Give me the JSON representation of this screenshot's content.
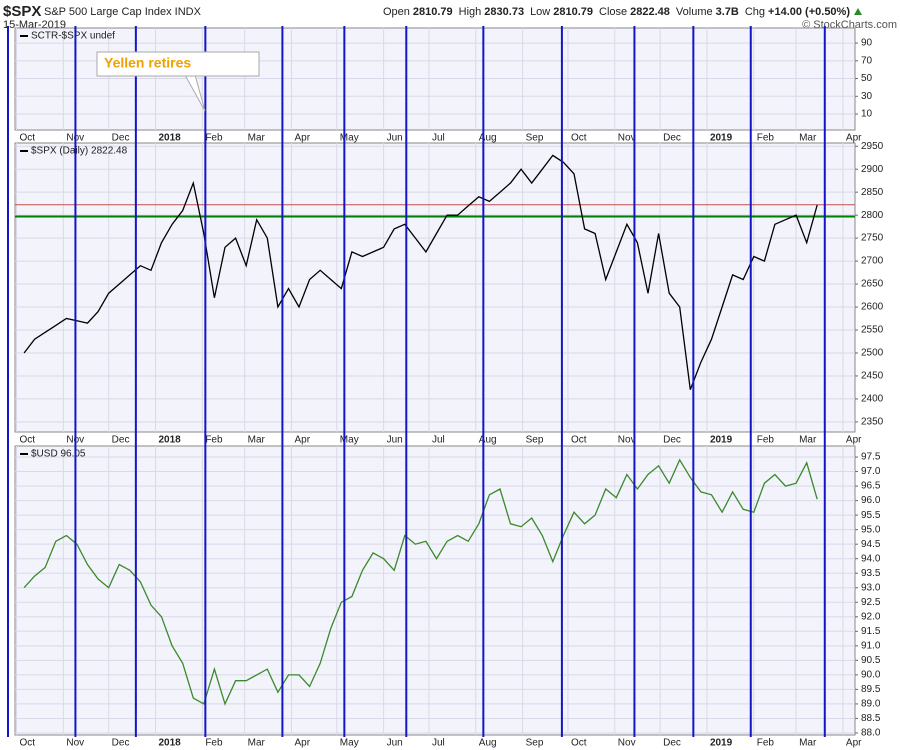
{
  "header": {
    "symbol": "$SPX",
    "name": "S&P 500 Large Cap Index INDX",
    "date": "15-Mar-2019",
    "quote": [
      {
        "label": "Open",
        "value": 2810.79
      },
      {
        "label": "High",
        "value": 2830.73
      },
      {
        "label": "Low",
        "value": 2810.79
      },
      {
        "label": "Close",
        "value": 2822.48
      },
      {
        "label": "Volume",
        "value": 3700000000,
        "value_label": "3.7B"
      },
      {
        "label": "Chg",
        "value_label": "+14.00 (+0.50%)"
      }
    ],
    "copyright": "© StockCharts.com"
  },
  "annotation": {
    "text": "Yellen retires"
  },
  "x_axis": {
    "xlim": [
      "2017-09-30",
      "2019-04-09"
    ],
    "xticks": [
      {
        "value": "2017-10-01",
        "label": "Oct"
      },
      {
        "value": "2017-11-01",
        "label": "Nov"
      },
      {
        "value": "2017-12-01",
        "label": "Dec"
      },
      {
        "value": "2018-01-01",
        "label": "2018"
      },
      {
        "value": "2018-02-01",
        "label": "Feb"
      },
      {
        "value": "2018-03-01",
        "label": "Mar"
      },
      {
        "value": "2018-04-01",
        "label": "Apr"
      },
      {
        "value": "2018-05-01",
        "label": "May"
      },
      {
        "value": "2018-06-01",
        "label": "Jun"
      },
      {
        "value": "2018-07-01",
        "label": "Jul"
      },
      {
        "value": "2018-08-01",
        "label": "Aug"
      },
      {
        "value": "2018-09-01",
        "label": "Sep"
      },
      {
        "value": "2018-10-01",
        "label": "Oct"
      },
      {
        "value": "2018-11-01",
        "label": "Nov"
      },
      {
        "value": "2018-12-01",
        "label": "Dec"
      },
      {
        "value": "2019-01-01",
        "label": "2019"
      },
      {
        "value": "2019-02-01",
        "label": "Feb"
      },
      {
        "value": "2019-03-01",
        "label": "Mar"
      },
      {
        "value": "2019-04-01",
        "label": "Apr"
      }
    ],
    "cycle_lines": [
      "2017-11-09",
      "2017-12-19",
      "2018-02-03",
      "2018-03-26",
      "2018-05-06",
      "2018-06-16",
      "2018-08-06",
      "2018-09-27",
      "2018-11-14",
      "2018-12-23",
      "2019-01-30",
      "2019-03-20"
    ],
    "cycle_color": "#1414c8"
  },
  "chart_data": [
    {
      "type": "line",
      "legend": "SCTR-$SPX undef",
      "x": [],
      "series": [],
      "ylim": [
        -8,
        107
      ],
      "yticks": [
        10,
        30,
        50,
        70,
        90
      ],
      "grid": true
    },
    {
      "type": "line",
      "legend": "$SPX (Daily) 2822.48",
      "x": [
        "2017-10-06",
        "2017-10-13",
        "2017-10-20",
        "2017-10-27",
        "2017-11-03",
        "2017-11-10",
        "2017-11-17",
        "2017-11-24",
        "2017-12-01",
        "2017-12-08",
        "2017-12-15",
        "2017-12-22",
        "2017-12-29",
        "2018-01-05",
        "2018-01-12",
        "2018-01-19",
        "2018-01-26",
        "2018-02-02",
        "2018-02-09",
        "2018-02-16",
        "2018-02-23",
        "2018-03-02",
        "2018-03-09",
        "2018-03-16",
        "2018-03-23",
        "2018-03-30",
        "2018-04-06",
        "2018-04-13",
        "2018-04-20",
        "2018-04-27",
        "2018-05-04",
        "2018-05-11",
        "2018-05-18",
        "2018-05-25",
        "2018-06-01",
        "2018-06-08",
        "2018-06-15",
        "2018-06-22",
        "2018-06-29",
        "2018-07-06",
        "2018-07-13",
        "2018-07-20",
        "2018-07-27",
        "2018-08-03",
        "2018-08-10",
        "2018-08-17",
        "2018-08-24",
        "2018-08-31",
        "2018-09-07",
        "2018-09-14",
        "2018-09-21",
        "2018-09-28",
        "2018-10-05",
        "2018-10-12",
        "2018-10-19",
        "2018-10-26",
        "2018-11-02",
        "2018-11-09",
        "2018-11-16",
        "2018-11-23",
        "2018-11-30",
        "2018-12-07",
        "2018-12-14",
        "2018-12-21",
        "2018-12-28",
        "2019-01-04",
        "2019-01-11",
        "2019-01-18",
        "2019-01-25",
        "2019-02-01",
        "2019-02-08",
        "2019-02-15",
        "2019-02-22",
        "2019-03-01",
        "2019-03-08",
        "2019-03-15"
      ],
      "series": [
        {
          "name": "$SPX",
          "color": "#000000",
          "values": [
            2500,
            2530,
            2545,
            2560,
            2575,
            2570,
            2565,
            2590,
            2630,
            2650,
            2670,
            2690,
            2680,
            2740,
            2780,
            2810,
            2870,
            2760,
            2620,
            2730,
            2750,
            2690,
            2790,
            2750,
            2600,
            2640,
            2600,
            2660,
            2680,
            2660,
            2640,
            2720,
            2710,
            2720,
            2730,
            2770,
            2780,
            2750,
            2720,
            2760,
            2800,
            2800,
            2820,
            2840,
            2830,
            2850,
            2870,
            2900,
            2870,
            2900,
            2930,
            2915,
            2890,
            2770,
            2760,
            2660,
            2720,
            2780,
            2740,
            2630,
            2760,
            2630,
            2600,
            2420,
            2480,
            2530,
            2600,
            2670,
            2660,
            2710,
            2700,
            2780,
            2790,
            2800,
            2740,
            2822
          ]
        }
      ],
      "hlines": [
        {
          "value": 2797,
          "color": "#008000"
        }
      ],
      "close_line_color": "#c0504d",
      "ylim": [
        2328,
        2957
      ],
      "yticks": [
        2350,
        2400,
        2450,
        2500,
        2550,
        2600,
        2650,
        2700,
        2750,
        2800,
        2850,
        2900,
        2950
      ],
      "grid": true
    },
    {
      "type": "line",
      "legend": "$USD 96.05",
      "x": [
        "2017-10-06",
        "2017-10-13",
        "2017-10-20",
        "2017-10-27",
        "2017-11-03",
        "2017-11-10",
        "2017-11-17",
        "2017-11-24",
        "2017-12-01",
        "2017-12-08",
        "2017-12-15",
        "2017-12-22",
        "2017-12-29",
        "2018-01-05",
        "2018-01-12",
        "2018-01-19",
        "2018-01-26",
        "2018-02-02",
        "2018-02-09",
        "2018-02-16",
        "2018-02-23",
        "2018-03-02",
        "2018-03-09",
        "2018-03-16",
        "2018-03-23",
        "2018-03-30",
        "2018-04-06",
        "2018-04-13",
        "2018-04-20",
        "2018-04-27",
        "2018-05-04",
        "2018-05-11",
        "2018-05-18",
        "2018-05-25",
        "2018-06-01",
        "2018-06-08",
        "2018-06-15",
        "2018-06-22",
        "2018-06-29",
        "2018-07-06",
        "2018-07-13",
        "2018-07-20",
        "2018-07-27",
        "2018-08-03",
        "2018-08-10",
        "2018-08-17",
        "2018-08-24",
        "2018-08-31",
        "2018-09-07",
        "2018-09-14",
        "2018-09-21",
        "2018-09-28",
        "2018-10-05",
        "2018-10-12",
        "2018-10-19",
        "2018-10-26",
        "2018-11-02",
        "2018-11-09",
        "2018-11-16",
        "2018-11-23",
        "2018-11-30",
        "2018-12-07",
        "2018-12-14",
        "2018-12-21",
        "2018-12-28",
        "2019-01-04",
        "2019-01-11",
        "2019-01-18",
        "2019-01-25",
        "2019-02-01",
        "2019-02-08",
        "2019-02-15",
        "2019-02-22",
        "2019-03-01",
        "2019-03-08",
        "2019-03-15"
      ],
      "series": [
        {
          "name": "$USD",
          "color": "#3a8a2a",
          "values": [
            93.0,
            93.4,
            93.7,
            94.6,
            94.8,
            94.5,
            93.8,
            93.3,
            93.0,
            93.8,
            93.6,
            93.2,
            92.4,
            92.0,
            91.0,
            90.4,
            89.2,
            89.0,
            90.2,
            89.0,
            89.8,
            89.8,
            90.0,
            90.2,
            89.4,
            90.0,
            90.0,
            89.6,
            90.4,
            91.6,
            92.5,
            92.7,
            93.6,
            94.2,
            94.0,
            93.6,
            94.8,
            94.5,
            94.6,
            94.0,
            94.6,
            94.8,
            94.6,
            95.2,
            96.2,
            96.4,
            95.2,
            95.1,
            95.4,
            94.8,
            93.9,
            94.8,
            95.6,
            95.2,
            95.5,
            96.4,
            96.1,
            96.9,
            96.4,
            96.9,
            97.2,
            96.6,
            97.4,
            96.8,
            96.3,
            96.2,
            95.6,
            96.3,
            95.7,
            95.6,
            96.6,
            96.9,
            96.5,
            96.6,
            97.3,
            96.05
          ]
        }
      ],
      "ylim": [
        87.93,
        97.88
      ],
      "yticks": [
        {
          "value": 88,
          "label": "88.0"
        },
        88.5,
        {
          "value": 89,
          "label": "89.0"
        },
        89.5,
        {
          "value": 90,
          "label": "90.0"
        },
        90.5,
        {
          "value": 91,
          "label": "91.0"
        },
        91.5,
        {
          "value": 92,
          "label": "92.0"
        },
        92.5,
        {
          "value": 93,
          "label": "93.0"
        },
        93.5,
        {
          "value": 94,
          "label": "94.0"
        },
        94.5,
        {
          "value": 95,
          "label": "95.0"
        },
        95.5,
        {
          "value": 96,
          "label": "96.0"
        },
        96.5,
        {
          "value": 97,
          "label": "97.0"
        },
        97.5
      ],
      "grid": true
    }
  ]
}
